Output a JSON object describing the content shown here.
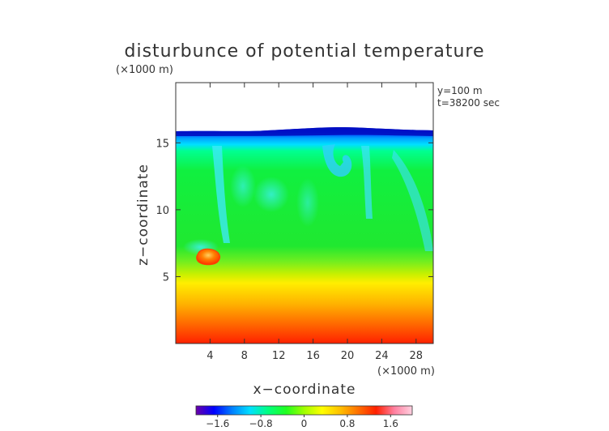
{
  "chart_data": {
    "type": "heatmap",
    "title": "disturbunce of potential temperature",
    "y_unit_label": "(×1000 m)",
    "x_unit_label": "(×1000 m)",
    "xlabel": "x−coordinate",
    "ylabel": "z−coordinate",
    "annotations": [
      "y=100 m",
      "t=38200 sec"
    ],
    "xlim": [
      0,
      30
    ],
    "ylim": [
      0,
      19.5
    ],
    "x_ticks": [
      4,
      8,
      12,
      16,
      20,
      24,
      28
    ],
    "y_ticks": [
      5,
      10,
      15
    ],
    "colorbar": {
      "min": -2.0,
      "max": 2.0,
      "ticks": [
        -1.6,
        -0.8,
        0,
        0.8,
        1.6
      ],
      "tick_labels": [
        "−1.6",
        "−0.8",
        "0",
        "0.8",
        "1.6"
      ],
      "colors": [
        "#6a00a8",
        "#0000ff",
        "#0080ff",
        "#00e0ff",
        "#00ff80",
        "#20ff20",
        "#a0ff00",
        "#ffff00",
        "#ffc000",
        "#ff7000",
        "#ff2000",
        "#ff80a0",
        "#ffd0e0"
      ]
    },
    "field_top_z": 16.4,
    "features": [
      {
        "name": "warm bubble",
        "x": 4,
        "z": 6.7,
        "value": 1.0
      },
      {
        "name": "cold upper layer",
        "z_range": [
          15.5,
          16.4
        ],
        "value": -1.6
      },
      {
        "name": "warm lower layer",
        "z_range": [
          0,
          3.5
        ],
        "value": 1.2
      }
    ],
    "grid": false
  }
}
